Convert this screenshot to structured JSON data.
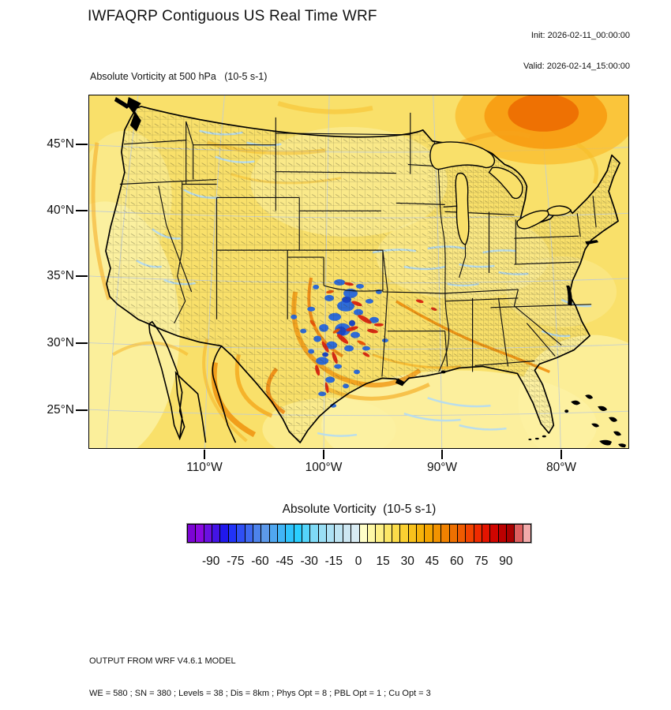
{
  "header": {
    "title": "IWFAQRP Contiguous US Real Time WRF",
    "init_label": "Init: 2026-02-11_00:00:00",
    "valid_label": "Valid: 2026-02-14_15:00:00"
  },
  "map": {
    "subtitle": "Absolute Vorticity at 500 hPa   (10-5 s-1)",
    "y_tick_labels": [
      "45°N",
      "40°N",
      "35°N",
      "30°N",
      "25°N"
    ],
    "x_tick_labels": [
      "110°W",
      "100°W",
      "90°W",
      "80°W"
    ]
  },
  "colorbar": {
    "title": "Absolute Vorticity  (10-5 s-1)",
    "tick_labels": [
      "-90",
      "-75",
      "-60",
      "-45",
      "-30",
      "-15",
      "0",
      "15",
      "30",
      "45",
      "60",
      "75",
      "90"
    ],
    "tick_values": [
      -90,
      -75,
      -60,
      -45,
      -30,
      -15,
      0,
      15,
      30,
      45,
      60,
      75,
      90
    ],
    "range": [
      -105,
      105
    ],
    "colors": [
      "#7C04D4",
      "#8A09E0",
      "#6A11E2",
      "#4414E6",
      "#2018EC",
      "#2133F8",
      "#2F4FF4",
      "#3E69F0",
      "#4D83EC",
      "#5C99EA",
      "#50A7F0",
      "#41B5F6",
      "#30C4FC",
      "#2ACFFF",
      "#55D5FB",
      "#7FDAF6",
      "#99DEF4",
      "#ADE1F4",
      "#BFE4F2",
      "#CDE7F2",
      "#D8EBF3",
      "#FFFEC8",
      "#FEF8A6",
      "#FDF086",
      "#FCE766",
      "#FBDC4A",
      "#FAD032",
      "#F8C11C",
      "#F6B30A",
      "#F4A400",
      "#F29300",
      "#F08200",
      "#EE7000",
      "#EF5B00",
      "#F14300",
      "#EF2B00",
      "#E31400",
      "#D00500",
      "#BB0000",
      "#A80000",
      "#DE6060",
      "#F2ABAB"
    ]
  },
  "footer": {
    "line1": "OUTPUT FROM WRF V4.6.1 MODEL",
    "line2": "WE = 580 ; SN = 380 ; Levels = 38 ; Dis = 8km ; Phys Opt = 8 ; PBL Opt = 1 ; Cu Opt = 3"
  },
  "field_colors": {
    "background_yellow": "#F9E06A",
    "pale_yellow": "#FCF1A3",
    "orange_core": "#EE7103",
    "orange_mid": "#F79B12",
    "negative_blue": "#2E6BD8",
    "filament_blue": "#B7DDF0",
    "red_max": "#DC2B12"
  },
  "chart_data": {
    "type": "heatmap",
    "title": "Absolute Vorticity at 500 hPa   (10-5 s-1)",
    "units": "10-5 s-1",
    "colorbar_title": "Absolute Vorticity  (10-5 s-1)",
    "colorbar_tick_values": [
      -90,
      -75,
      -60,
      -45,
      -30,
      -15,
      0,
      15,
      30,
      45,
      60,
      75,
      90
    ],
    "colorbar_range": [
      -105,
      105
    ],
    "colorbar_cell_width_units": 5,
    "x_axis_ticks": [
      "110°W",
      "100°W",
      "90°W",
      "80°W"
    ],
    "y_axis_ticks": [
      "45°N",
      "40°N",
      "35°N",
      "30°N",
      "25°N"
    ],
    "projection": "Lambert conformal over contiguous US with county boundaries",
    "field_features": [
      {
        "location": "southern Great Plains, TX/OK panhandle region (~100-103°W, 32-37°N)",
        "description": "intense small-scale vorticity dipoles and streaks (convective noise)",
        "value_range": [
          -90,
          90
        ]
      },
      {
        "location": "upper Great Lakes / Canada (~85°W, ~49°N)",
        "description": "broad synoptic-scale vorticity maximum (orange blob)",
        "value_range": [
          30,
          60
        ]
      },
      {
        "location": "contiguous US background",
        "description": "weak positive absolute vorticity",
        "value_range": [
          5,
          15
        ]
      },
      {
        "location": "Midwest, Gulf coast and interior West filaments",
        "description": "near-zero to slightly negative light-blue filaments",
        "value_range": [
          -10,
          0
        ]
      },
      {
        "location": "northern Mexico and Southwest",
        "description": "banded positive vorticity spirals",
        "value_range": [
          15,
          35
        ]
      }
    ]
  }
}
